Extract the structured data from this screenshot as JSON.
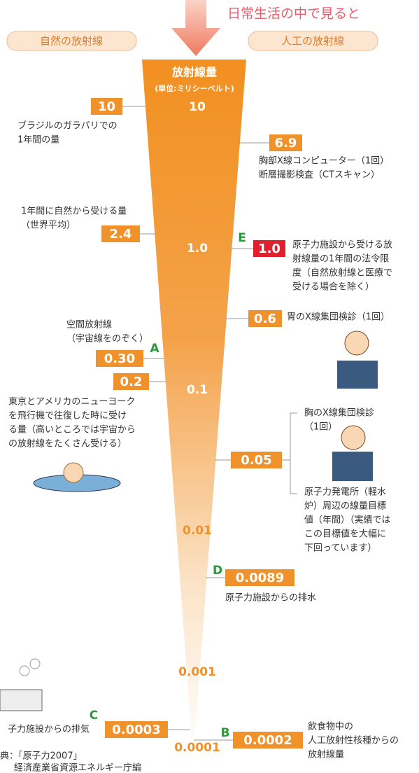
{
  "header": {
    "arrow_label": "日常生活の中で見ると",
    "left_title": "自然の放射線",
    "right_title": "人工の放射線"
  },
  "scale": {
    "title": "放射線量",
    "unit": "(単位:ミリシーベルト)",
    "ticks": [
      "10",
      "1.0",
      "0.1",
      "0.01",
      "0.001",
      "0.0001"
    ]
  },
  "left_items": [
    {
      "value": "10",
      "lines": [
        "ブラジルのガラパリでの",
        "1年間の量"
      ]
    },
    {
      "value": "2.4",
      "lines": [
        "1年間に自然から受ける量",
        "（世界平均）"
      ]
    },
    {
      "value": "0.30",
      "letter": "A",
      "lines": [
        "空間放射線",
        "（宇宙線をのぞく）"
      ]
    },
    {
      "value": "0.2",
      "lines": [
        "東京とアメリカのニューヨーク",
        "を飛行機で往復した時に受け",
        "る量（高いところでは宇宙から",
        "の放射線をたくさん受ける）"
      ]
    },
    {
      "value": "0.0003",
      "letter": "C",
      "lines": [
        "子力施設からの排気"
      ]
    }
  ],
  "right_items": [
    {
      "value": "6.9",
      "lines": [
        "胸部X線コンピューター（1回）",
        "断層撮影検査（CTスキャン）"
      ]
    },
    {
      "value": "1.0",
      "letter": "E",
      "lines": [
        "原子力施設から受ける放",
        "射線量の1年間の法令限",
        "度（自然放射線と医療で",
        "受ける場合を除く）"
      ]
    },
    {
      "value": "0.6",
      "lines": [
        "胃のX線集団検診（1回）"
      ]
    },
    {
      "value": "0.05",
      "lines": [
        "胸のX線集団検診",
        "（1回）"
      ],
      "lines2": [
        "原子力発電所（軽水",
        "炉）周辺の線量目標",
        "値（年間）（実績では",
        "この目標値を大幅に",
        "下回っています）"
      ]
    },
    {
      "value": "0.0089",
      "letter": "D",
      "lines": [
        "原子力施設からの排水"
      ]
    },
    {
      "value": "0.0002",
      "letter": "B",
      "lines": [
        "飲食物中の",
        "人工放射性核種からの",
        "放射線量"
      ]
    }
  ],
  "source": [
    "典：「原子力2007」",
    "経済産業省資源エネルギー庁編"
  ]
}
